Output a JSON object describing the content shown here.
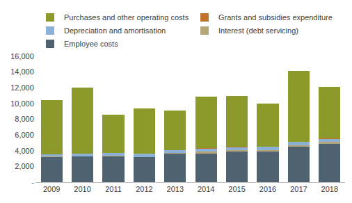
{
  "chart_data": {
    "type": "bar",
    "stacked": true,
    "grid": false,
    "legend": "top",
    "categories": [
      "2009",
      "2010",
      "2011",
      "2012",
      "2013",
      "2014",
      "2015",
      "2016",
      "2017",
      "2018"
    ],
    "series": [
      {
        "name": "Employee costs",
        "color": "#4f6270",
        "values": [
          3200,
          3250,
          3300,
          3150,
          3600,
          3650,
          3850,
          3900,
          4500,
          4900
        ]
      },
      {
        "name": "Interest (debt servicing)",
        "color": "#b5a67a",
        "values": [
          50,
          50,
          50,
          50,
          100,
          200,
          200,
          200,
          200,
          200
        ]
      },
      {
        "name": "Depreciation and amortisation",
        "color": "#8db0d6",
        "values": [
          300,
          300,
          350,
          400,
          350,
          400,
          400,
          400,
          400,
          400
        ]
      },
      {
        "name": "Grants and subsidies expenditure",
        "color": "#c0722b",
        "values": [
          0,
          0,
          0,
          0,
          0,
          50,
          50,
          50,
          50,
          50
        ]
      },
      {
        "name": "Purchases and other operating costs",
        "color": "#8b9a2b",
        "values": [
          6900,
          8400,
          4900,
          5800,
          5050,
          6600,
          6500,
          5450,
          8950,
          6550
        ]
      }
    ],
    "ylim": [
      0,
      16000
    ],
    "yticks": [
      {
        "value": 0,
        "label": "-"
      },
      {
        "value": 2000,
        "label": "2,000"
      },
      {
        "value": 4000,
        "label": "4,000"
      },
      {
        "value": 6000,
        "label": "6,000"
      },
      {
        "value": 8000,
        "label": "8,000"
      },
      {
        "value": 10000,
        "label": "10,000"
      },
      {
        "value": 12000,
        "label": "12,000"
      },
      {
        "value": 14000,
        "label": "14,000"
      },
      {
        "value": 16000,
        "label": "16,000"
      }
    ]
  }
}
